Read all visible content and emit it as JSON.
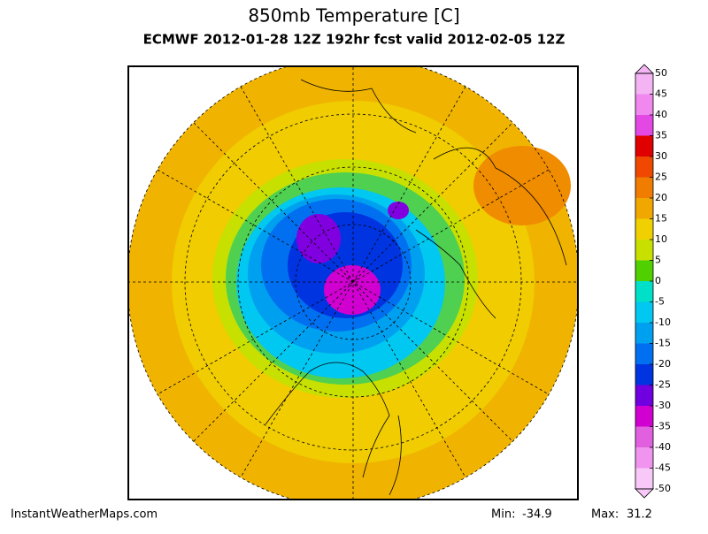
{
  "header": {
    "title": "850mb Temperature [C]",
    "subtitle": "ECMWF 2012-01-28 12Z 192hr fcst valid 2012-02-05 12Z"
  },
  "colorbar": {
    "ticks": [
      50,
      45,
      40,
      35,
      30,
      25,
      20,
      15,
      10,
      5,
      0,
      -5,
      -10,
      -15,
      -20,
      -25,
      -30,
      -35,
      -40,
      -45,
      -50
    ],
    "colors": [
      "#f4b4f4",
      "#f088f0",
      "#e448e4",
      "#e00000",
      "#f04800",
      "#f07c00",
      "#f0a800",
      "#f0d000",
      "#c8e000",
      "#50d000",
      "#00e0c8",
      "#00c8f0",
      "#00a0f0",
      "#0070f0",
      "#0034e0",
      "#7000e0",
      "#d000d0",
      "#e060e0",
      "#f094f0",
      "#f8c8f8"
    ]
  },
  "footer": {
    "site": "InstantWeatherMaps.com",
    "min_label": "Min:",
    "min_value": -34.9,
    "max_label": "Max:",
    "max_value": 31.2
  }
}
